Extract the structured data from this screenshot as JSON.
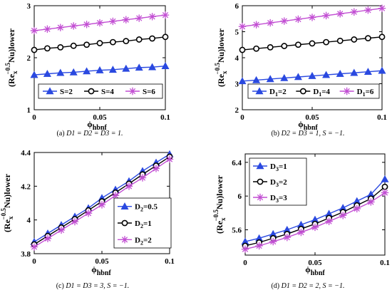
{
  "figure": {
    "colors": {
      "blue": "#2a49e0",
      "black": "#000000",
      "magenta": "#c24fd3"
    },
    "markers": {
      "triangle": "triangle-marker",
      "circle": "circle-marker",
      "star": "star-marker"
    }
  },
  "chart_data": [
    {
      "id": "a",
      "type": "line",
      "xlabel": "ϕ",
      "xlabel_sub": "hbnf",
      "ylabel_parts": [
        "(Re",
        "x",
        "−0.5",
        "Nu)lower"
      ],
      "xlim": [
        0,
        0.1
      ],
      "ylim": [
        1,
        3
      ],
      "xticks": [
        0,
        0.05,
        0.1
      ],
      "xtick_labels": [
        "0",
        "0.05",
        "0.1"
      ],
      "yticks": [
        1,
        2,
        3
      ],
      "ytick_labels": [
        "1",
        "2",
        "3"
      ],
      "x": [
        0,
        0.01,
        0.02,
        0.03,
        0.04,
        0.05,
        0.06,
        0.07,
        0.08,
        0.09,
        0.1
      ],
      "legend_position": "bottom",
      "legend_layout": "row",
      "series": [
        {
          "name": "S=2",
          "label": [
            "S=2"
          ],
          "marker": "triangle",
          "color": "#2a49e0",
          "values": [
            1.67,
            1.69,
            1.71,
            1.72,
            1.74,
            1.76,
            1.77,
            1.79,
            1.81,
            1.82,
            1.84
          ]
        },
        {
          "name": "S=4",
          "label": [
            "S=4"
          ],
          "marker": "circle",
          "color": "#000000",
          "values": [
            2.15,
            2.18,
            2.2,
            2.23,
            2.25,
            2.28,
            2.3,
            2.32,
            2.35,
            2.37,
            2.4
          ]
        },
        {
          "name": "S=6",
          "label": [
            "S=6"
          ],
          "marker": "star",
          "color": "#c24fd3",
          "values": [
            2.52,
            2.55,
            2.58,
            2.61,
            2.64,
            2.67,
            2.7,
            2.73,
            2.76,
            2.79,
            2.82
          ]
        }
      ],
      "caption_prefix": "(a)",
      "caption": "D1 = D2 = D3 = 1."
    },
    {
      "id": "b",
      "type": "line",
      "xlabel": "ϕ",
      "xlabel_sub": "hbnf",
      "ylabel_parts": [
        "(Re",
        "x",
        "−0.5",
        "Nu)lower"
      ],
      "xlim": [
        0,
        0.1
      ],
      "ylim": [
        2,
        6
      ],
      "xticks": [
        0,
        0.05,
        0.1
      ],
      "xtick_labels": [
        "0",
        "0.05",
        "0.1"
      ],
      "yticks": [
        2,
        3,
        4,
        5,
        6
      ],
      "ytick_labels": [
        "2",
        "3",
        "4",
        "5",
        "6"
      ],
      "x": [
        0,
        0.01,
        0.02,
        0.03,
        0.04,
        0.05,
        0.06,
        0.07,
        0.08,
        0.09,
        0.1
      ],
      "legend_position": "bottom",
      "legend_layout": "row",
      "series": [
        {
          "name": "D1=2",
          "label": [
            "D",
            "1",
            "=2"
          ],
          "marker": "triangle",
          "color": "#2a49e0",
          "values": [
            3.1,
            3.14,
            3.18,
            3.22,
            3.26,
            3.3,
            3.34,
            3.38,
            3.42,
            3.46,
            3.5
          ]
        },
        {
          "name": "D1=4",
          "label": [
            "D",
            "1",
            "=4"
          ],
          "marker": "circle",
          "color": "#000000",
          "values": [
            4.3,
            4.35,
            4.4,
            4.45,
            4.5,
            4.55,
            4.6,
            4.65,
            4.7,
            4.75,
            4.8
          ]
        },
        {
          "name": "D1=6",
          "label": [
            "D",
            "1",
            "=6"
          ],
          "marker": "star",
          "color": "#c24fd3",
          "values": [
            5.2,
            5.27,
            5.34,
            5.41,
            5.48,
            5.55,
            5.62,
            5.69,
            5.76,
            5.83,
            5.9
          ]
        }
      ],
      "caption_prefix": "(b)",
      "caption": "D2 = D3 = 1,  S = −1."
    },
    {
      "id": "c",
      "type": "line",
      "xlabel": "ϕ",
      "xlabel_sub": "hbnf",
      "ylabel_parts": [
        "(Re",
        "x",
        "−0.5",
        "Nu)lower"
      ],
      "xlim": [
        0,
        0.1
      ],
      "ylim": [
        3.8,
        4.4
      ],
      "xticks": [
        0,
        0.05,
        0.1
      ],
      "xtick_labels": [
        "0",
        "0.05",
        "0.1"
      ],
      "yticks": [
        3.8,
        4,
        4.2,
        4.4
      ],
      "ytick_labels": [
        "3.8",
        "4",
        "4.2",
        "4.4"
      ],
      "x": [
        0,
        0.01,
        0.02,
        0.03,
        0.04,
        0.05,
        0.06,
        0.07,
        0.08,
        0.09,
        0.1
      ],
      "legend_position": "right",
      "legend_layout": "column",
      "series": [
        {
          "name": "D2=0.5",
          "label": [
            "D",
            "2",
            "=0.5"
          ],
          "marker": "triangle",
          "color": "#2a49e0",
          "values": [
            3.87,
            3.92,
            3.97,
            4.02,
            4.07,
            4.13,
            4.18,
            4.23,
            4.29,
            4.34,
            4.39
          ]
        },
        {
          "name": "D2=1",
          "label": [
            "D",
            "2",
            "=1"
          ],
          "marker": "circle",
          "color": "#000000",
          "values": [
            3.855,
            3.905,
            3.955,
            4.005,
            4.057,
            4.11,
            4.162,
            4.215,
            4.27,
            4.322,
            4.375
          ]
        },
        {
          "name": "D2=2",
          "label": [
            "D",
            "2",
            "=2"
          ],
          "marker": "star",
          "color": "#c24fd3",
          "values": [
            3.84,
            3.89,
            3.94,
            3.99,
            4.04,
            4.09,
            4.145,
            4.2,
            4.25,
            4.305,
            4.36
          ]
        }
      ],
      "caption_prefix": "(c)",
      "caption": "D1 = D3 = 3,  S = −1."
    },
    {
      "id": "d",
      "type": "line",
      "xlabel": "ϕ",
      "xlabel_sub": "hbnf",
      "ylabel_parts": [
        "(Re",
        "x",
        "−0.5",
        "Nu)lower"
      ],
      "xlim": [
        0,
        0.1
      ],
      "ylim": [
        5.3,
        6.5
      ],
      "xticks": [
        0,
        0.05,
        0.1
      ],
      "xtick_labels": [
        "0",
        "0.05",
        "0.1"
      ],
      "yticks": [
        5.6,
        6,
        6.4
      ],
      "ytick_labels": [
        "5.6",
        "6",
        "6.4"
      ],
      "x": [
        0,
        0.01,
        0.02,
        0.03,
        0.04,
        0.05,
        0.06,
        0.07,
        0.08,
        0.09,
        0.1
      ],
      "legend_position": "top-left",
      "legend_layout": "column",
      "series": [
        {
          "name": "D3=1",
          "label": [
            "D",
            "3",
            "=1"
          ],
          "marker": "triangle",
          "color": "#2a49e0",
          "values": [
            5.46,
            5.5,
            5.55,
            5.6,
            5.66,
            5.72,
            5.79,
            5.86,
            5.94,
            6.02,
            6.2
          ]
        },
        {
          "name": "D3=2",
          "label": [
            "D",
            "3",
            "=2"
          ],
          "marker": "circle",
          "color": "#000000",
          "values": [
            5.41,
            5.45,
            5.5,
            5.55,
            5.61,
            5.67,
            5.74,
            5.81,
            5.89,
            5.97,
            6.11
          ]
        },
        {
          "name": "D3=3",
          "label": [
            "D",
            "3",
            "=3"
          ],
          "marker": "star",
          "color": "#c24fd3",
          "values": [
            5.37,
            5.41,
            5.46,
            5.51,
            5.57,
            5.63,
            5.7,
            5.77,
            5.85,
            5.93,
            6.04
          ]
        }
      ],
      "caption_prefix": "(d)",
      "caption": "D1 = D2 = 2,  S = −1."
    }
  ]
}
